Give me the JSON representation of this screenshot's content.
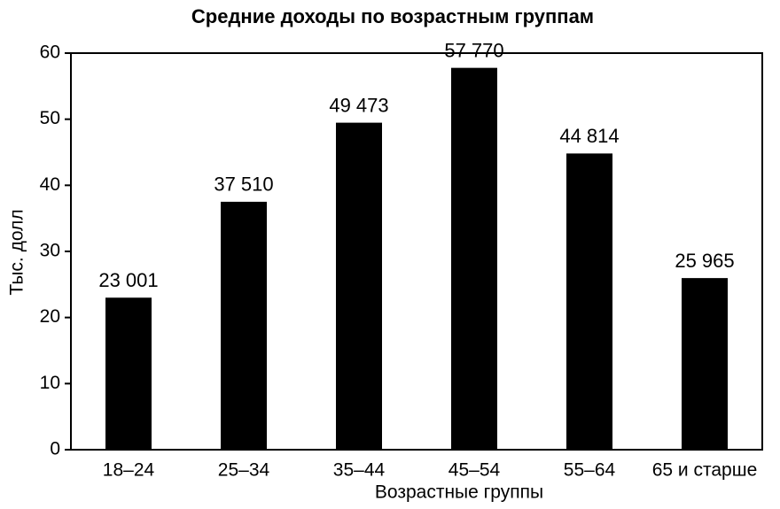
{
  "chart_data": {
    "type": "bar",
    "title": "Средние доходы по возрастным группам",
    "x_label": "Возрастные группы",
    "y_label": "Тыс. долл",
    "categories": [
      "18–24",
      "25–34",
      "35–44",
      "45–54",
      "55–64",
      "65 и старше"
    ],
    "values": [
      23.001,
      37.51,
      49.473,
      57.77,
      44.814,
      25.965
    ],
    "value_labels": [
      "23 001",
      "37 510",
      "49 473",
      "57 770",
      "44 814",
      "25 965"
    ],
    "color": "#000000",
    "ylim": [
      0,
      60
    ],
    "yticks": [
      0,
      10,
      20,
      30,
      40,
      50,
      60
    ],
    "grid": false
  }
}
